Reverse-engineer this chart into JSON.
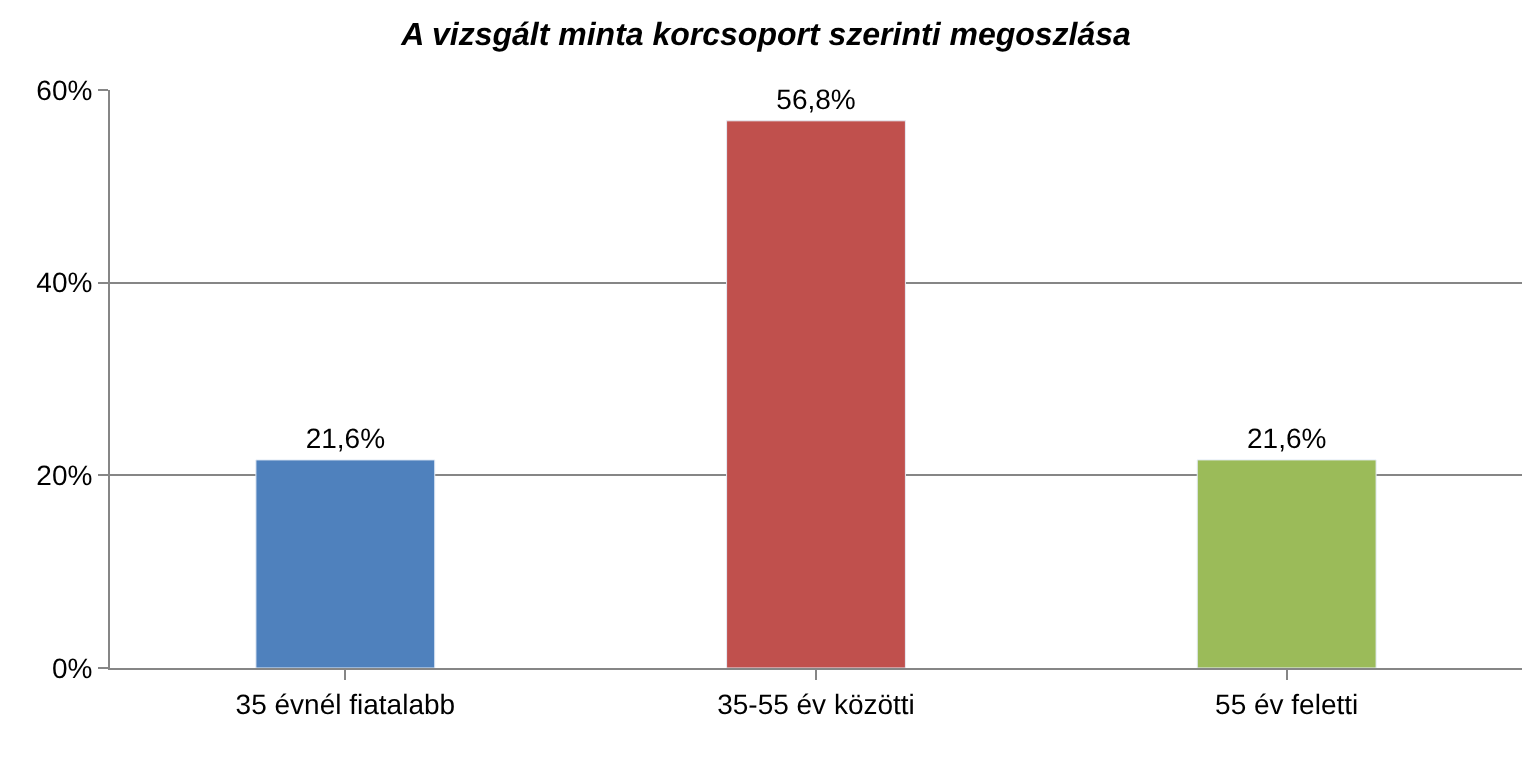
{
  "chart_data": {
    "type": "bar",
    "title": "A vizsgált minta korcsoport szerinti megoszlása",
    "categories": [
      "35 évnél fiatalabb",
      "35-55 év közötti",
      "55 év feletti"
    ],
    "values": [
      21.6,
      56.8,
      21.6
    ],
    "colors": [
      "#4f81bd",
      "#c0504d",
      "#9bbb59"
    ],
    "value_labels": [
      "21,6%",
      "56,8%",
      "21,6%"
    ],
    "ylim": [
      0,
      60
    ],
    "yticks": [
      {
        "value": 0,
        "label": "0%"
      },
      {
        "value": 20,
        "label": "20%"
      },
      {
        "value": 40,
        "label": "40%"
      },
      {
        "value": 60,
        "label": "60%"
      }
    ],
    "grid": "y"
  }
}
